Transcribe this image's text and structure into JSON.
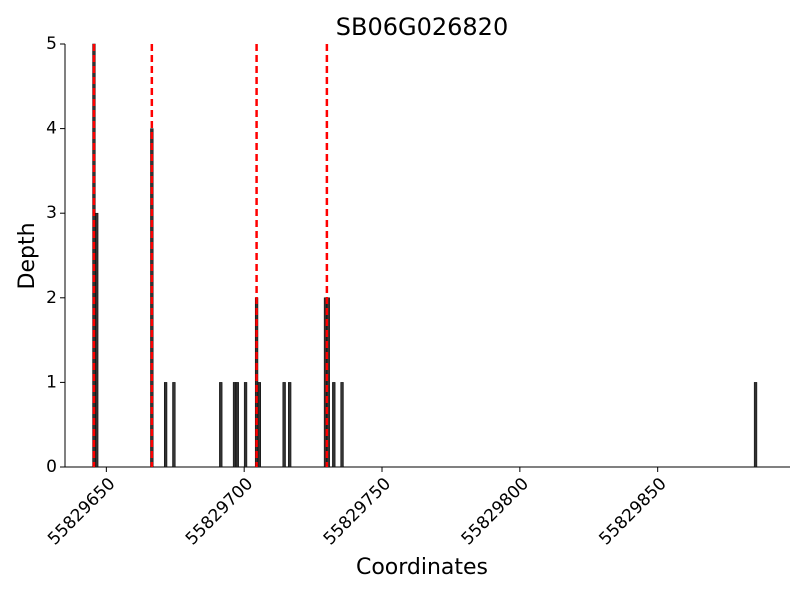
{
  "chart_data": {
    "type": "bar",
    "title": "SB06G026820",
    "x_label": "Coordinates",
    "y_label": "Depth",
    "x": [
      55829645,
      55829646,
      55829666,
      55829671,
      55829674,
      55829691,
      55829696,
      55829697,
      55829700,
      55829704,
      55829705,
      55829714,
      55829716,
      55829729,
      55829730,
      55829732,
      55829735,
      55829885
    ],
    "values": [
      5,
      3,
      4,
      1,
      1,
      1,
      1,
      1,
      1,
      2,
      1,
      1,
      1,
      2,
      2,
      1,
      1,
      1
    ],
    "bar_width": 1,
    "color": "#333333",
    "vlines": [
      55829645.5,
      55829666.5,
      55829704.5,
      55829730
    ],
    "vline_color": "#ff0000",
    "xlim": [
      55829635,
      55829898
    ],
    "xticks": [
      55829650,
      55829700,
      55829750,
      55829800,
      55829850
    ],
    "ylim": [
      0,
      5
    ],
    "yticks": [
      0,
      1,
      2,
      3,
      4,
      5
    ],
    "grid": false
  }
}
